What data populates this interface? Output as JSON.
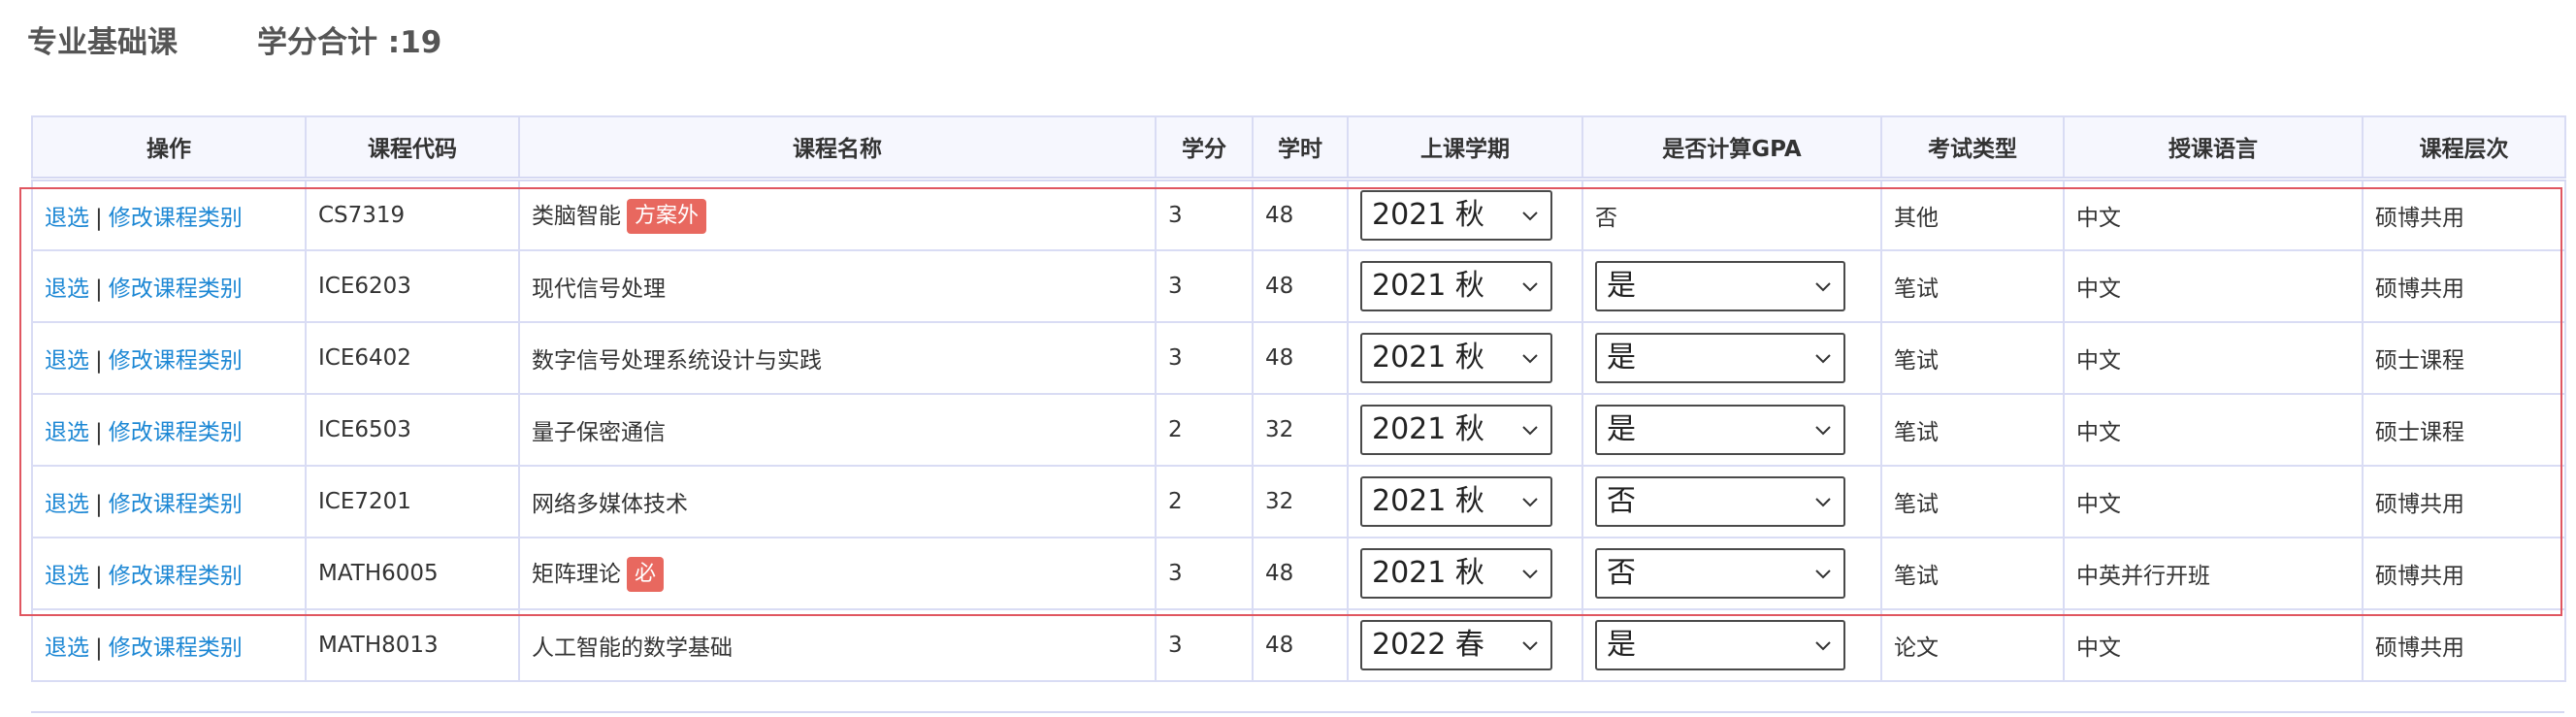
{
  "header": {
    "section_title": "专业基础课",
    "credit_total": "学分合计 :19"
  },
  "table": {
    "columns": [
      "操作",
      "课程代码",
      "课程名称",
      "学分",
      "学时",
      "上课学期",
      "是否计算GPA",
      "考试类型",
      "授课语言",
      "课程层次"
    ],
    "action_labels": {
      "withdraw": "退选",
      "separator": "|",
      "modify": "修改课程类别"
    },
    "rows": [
      {
        "code": "CS7319",
        "name": "类脑智能",
        "tag": "方案外",
        "credits": "3",
        "hours": "48",
        "term": "2021 秋",
        "gpa": "否",
        "gpa_editable": false,
        "exam": "其他",
        "language": "中文",
        "level": "硕博共用"
      },
      {
        "code": "ICE6203",
        "name": "现代信号处理",
        "tag": "",
        "credits": "3",
        "hours": "48",
        "term": "2021 秋",
        "gpa": "是",
        "gpa_editable": true,
        "exam": "笔试",
        "language": "中文",
        "level": "硕博共用"
      },
      {
        "code": "ICE6402",
        "name": "数字信号处理系统设计与实践",
        "tag": "",
        "credits": "3",
        "hours": "48",
        "term": "2021 秋",
        "gpa": "是",
        "gpa_editable": true,
        "exam": "笔试",
        "language": "中文",
        "level": "硕士课程"
      },
      {
        "code": "ICE6503",
        "name": "量子保密通信",
        "tag": "",
        "credits": "2",
        "hours": "32",
        "term": "2021 秋",
        "gpa": "是",
        "gpa_editable": true,
        "exam": "笔试",
        "language": "中文",
        "level": "硕士课程"
      },
      {
        "code": "ICE7201",
        "name": "网络多媒体技术",
        "tag": "",
        "credits": "2",
        "hours": "32",
        "term": "2021 秋",
        "gpa": "否",
        "gpa_editable": true,
        "exam": "笔试",
        "language": "中文",
        "level": "硕博共用"
      },
      {
        "code": "MATH6005",
        "name": "矩阵理论",
        "tag": "必",
        "credits": "3",
        "hours": "48",
        "term": "2021 秋",
        "gpa": "否",
        "gpa_editable": true,
        "exam": "笔试",
        "language": "中英并行开班",
        "level": "硕博共用"
      },
      {
        "code": "MATH8013",
        "name": "人工智能的数学基础",
        "tag": "",
        "credits": "3",
        "hours": "48",
        "term": "2022 春",
        "gpa": "是",
        "gpa_editable": true,
        "exam": "论文",
        "language": "中文",
        "level": "硕博共用"
      }
    ]
  },
  "icons": {
    "dropdown": "chevron-down-icon"
  },
  "colors": {
    "link": "#1c87d4",
    "tag_bg": "#e8685f",
    "border": "#d9dcf4",
    "header_bg": "#f6f7fe",
    "highlight": "#e05660"
  }
}
